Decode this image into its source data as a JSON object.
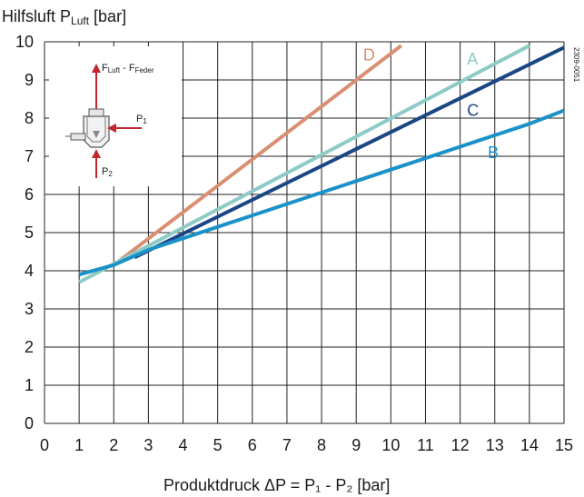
{
  "chart_data": {
    "type": "line",
    "ylabel": {
      "main": "Hilfsluft P",
      "sub": "Luft",
      "unit": " [bar]"
    },
    "xlabel": "Produktdruck  ΔP = P₁ - P₂ [bar]",
    "xlim": [
      0,
      15
    ],
    "ylim": [
      0,
      10
    ],
    "xticks": [
      0,
      1,
      2,
      3,
      4,
      5,
      6,
      7,
      8,
      9,
      10,
      11,
      12,
      13,
      14,
      15
    ],
    "yticks": [
      0,
      1,
      2,
      3,
      4,
      5,
      6,
      7,
      8,
      9,
      10
    ],
    "grid": true,
    "series": [
      {
        "name": "D",
        "color": "#d98f72",
        "x": [
          2,
          10.3
        ],
        "y": [
          4.15,
          9.9
        ]
      },
      {
        "name": "A",
        "color": "#8ecac6",
        "x": [
          1,
          14
        ],
        "y": [
          3.7,
          9.9
        ]
      },
      {
        "name": "C",
        "color": "#1b4585",
        "x": [
          2.6,
          15
        ],
        "y": [
          4.35,
          9.85
        ]
      },
      {
        "name": "B",
        "color": "#1a92c8",
        "x": [
          1,
          2,
          3,
          4,
          5,
          6,
          7,
          8,
          9,
          10,
          11,
          12,
          13,
          14,
          15
        ],
        "y": [
          3.9,
          4.15,
          4.55,
          4.85,
          5.15,
          5.45,
          5.75,
          6.05,
          6.35,
          6.65,
          6.95,
          7.25,
          7.55,
          7.85,
          8.2
        ]
      }
    ],
    "series_labels": [
      {
        "name": "D",
        "x": 9.2,
        "y": 9.65
      },
      {
        "name": "A",
        "x": 12.2,
        "y": 9.55
      },
      {
        "name": "C",
        "x": 12.2,
        "y": 8.2
      },
      {
        "name": "B",
        "x": 12.8,
        "y": 7.1
      }
    ],
    "inset": {
      "force_label": {
        "p1": "F",
        "s1": "Luft",
        "mid": " - F",
        "s2": "Feder"
      },
      "p1_label": {
        "main": "P",
        "sub": "1"
      },
      "p2_label": {
        "main": "P",
        "sub": "2"
      }
    },
    "code": "2309-0051"
  }
}
